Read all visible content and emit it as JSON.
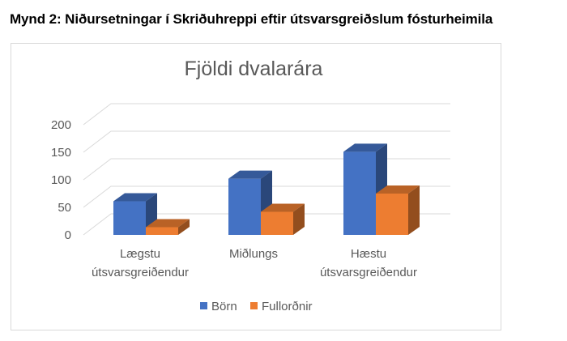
{
  "caption": "Mynd 2: Niðursetningar í Skriðuhreppi eftir útsvarsgreiðslum fósturheimila",
  "chart_data": {
    "type": "bar",
    "style": "3d-clustered-column",
    "title": "Fjöldi dvalarára",
    "categories": [
      [
        "Lægstu",
        "útsvarsgreiðendur"
      ],
      [
        "Miðlungs"
      ],
      [
        "Hæstu",
        "útsvarsgreiðendur"
      ]
    ],
    "series": [
      {
        "name": "Börn",
        "values": [
          61,
          102,
          151
        ],
        "color": "#4472c4"
      },
      {
        "name": "Fullorðnir",
        "values": [
          14,
          42,
          75
        ],
        "color": "#ed7d31"
      }
    ],
    "ylim": [
      0,
      200
    ],
    "yticks": [
      0,
      50,
      100,
      150,
      200
    ],
    "grid": true,
    "legend_position": "bottom"
  }
}
